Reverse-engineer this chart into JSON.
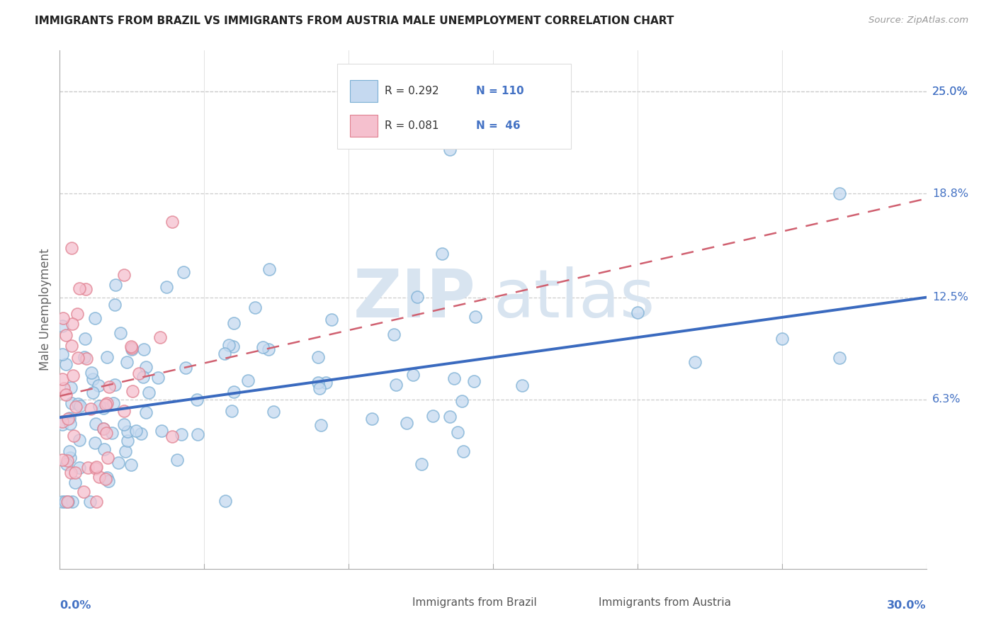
{
  "title": "IMMIGRANTS FROM BRAZIL VS IMMIGRANTS FROM AUSTRIA MALE UNEMPLOYMENT CORRELATION CHART",
  "source": "Source: ZipAtlas.com",
  "ylabel": "Male Unemployment",
  "ytick_labels": [
    "25.0%",
    "18.8%",
    "12.5%",
    "6.3%"
  ],
  "ytick_values": [
    0.25,
    0.188,
    0.125,
    0.063
  ],
  "xlim": [
    0.0,
    0.3
  ],
  "ylim": [
    -0.04,
    0.275
  ],
  "watermark_zip": "ZIP",
  "watermark_atlas": "atlas",
  "color_brazil_fill": "#c5d9f0",
  "color_brazil_edge": "#7bafd4",
  "color_austria_fill": "#f5c0ce",
  "color_austria_edge": "#e08090",
  "color_line_brazil": "#3a6abf",
  "color_line_austria": "#d06070",
  "color_text_blue": "#4472c4",
  "brazil_line_x0": 0.0,
  "brazil_line_y0": 0.052,
  "brazil_line_x1": 0.3,
  "brazil_line_y1": 0.125,
  "austria_line_x0": 0.0,
  "austria_line_y0": 0.065,
  "austria_line_x1": 0.3,
  "austria_line_y1": 0.185
}
